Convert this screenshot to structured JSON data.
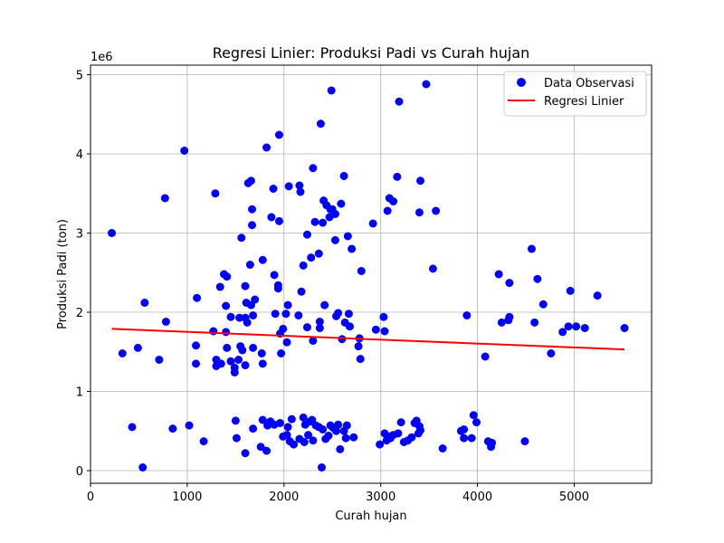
{
  "chart_data": {
    "type": "scatter",
    "title": "Regresi Linier: Produksi Padi vs Curah hujan",
    "xlabel": "Curah hujan",
    "ylabel": "Produksi Padi (ton)",
    "y_offset_label": "1e6",
    "xlim": [
      0,
      5800
    ],
    "ylim": [
      -0.16,
      5.12
    ],
    "y_unit_multiplier": 1000000,
    "x_ticks": [
      0,
      1000,
      2000,
      3000,
      4000,
      5000
    ],
    "y_ticks": [
      0,
      1,
      2,
      3,
      4,
      5
    ],
    "grid": true,
    "legend_position": "top-right",
    "colors": {
      "points": "#0000ff",
      "regression": "#ff0000"
    },
    "series": [
      {
        "name": "Data Observasi",
        "type": "scatter",
        "points": [
          [
            220,
            3.0
          ],
          [
            560,
            2.12
          ],
          [
            970,
            4.04
          ],
          [
            770,
            3.44
          ],
          [
            780,
            1.88
          ],
          [
            710,
            1.4
          ],
          [
            330,
            1.48
          ],
          [
            490,
            1.55
          ],
          [
            430,
            0.55
          ],
          [
            540,
            0.04
          ],
          [
            1290,
            3.5
          ],
          [
            1100,
            2.18
          ],
          [
            1090,
            1.58
          ],
          [
            1090,
            1.35
          ],
          [
            1020,
            0.57
          ],
          [
            850,
            0.53
          ],
          [
            1170,
            0.37
          ],
          [
            1270,
            1.76
          ],
          [
            1300,
            1.4
          ],
          [
            1300,
            1.32
          ],
          [
            1350,
            1.35
          ],
          [
            1340,
            2.32
          ],
          [
            1380,
            2.48
          ],
          [
            1410,
            2.45
          ],
          [
            1400,
            2.08
          ],
          [
            1400,
            1.75
          ],
          [
            1410,
            1.55
          ],
          [
            1450,
            1.94
          ],
          [
            1450,
            1.38
          ],
          [
            1490,
            1.24
          ],
          [
            1490,
            1.3
          ],
          [
            1530,
            1.4
          ],
          [
            1540,
            1.93
          ],
          [
            1560,
            2.94
          ],
          [
            1550,
            1.57
          ],
          [
            1570,
            1.52
          ],
          [
            1600,
            2.33
          ],
          [
            1600,
            1.93
          ],
          [
            1600,
            1.33
          ],
          [
            1610,
            2.12
          ],
          [
            1620,
            1.87
          ],
          [
            1630,
            3.63
          ],
          [
            1660,
            3.66
          ],
          [
            1650,
            2.6
          ],
          [
            1670,
            3.3
          ],
          [
            1670,
            3.1
          ],
          [
            1660,
            2.09
          ],
          [
            1680,
            1.96
          ],
          [
            1680,
            1.55
          ],
          [
            1700,
            2.16
          ],
          [
            1770,
            1.48
          ],
          [
            1780,
            2.66
          ],
          [
            1780,
            1.35
          ],
          [
            1820,
            4.08
          ],
          [
            1870,
            3.2
          ],
          [
            1890,
            3.56
          ],
          [
            1900,
            2.47
          ],
          [
            1910,
            1.98
          ],
          [
            1940,
            2.34
          ],
          [
            1940,
            2.3
          ],
          [
            1950,
            4.24
          ],
          [
            1950,
            3.15
          ],
          [
            1960,
            1.73
          ],
          [
            1970,
            1.48
          ],
          [
            1990,
            1.79
          ],
          [
            2020,
            1.98
          ],
          [
            2030,
            1.62
          ],
          [
            2040,
            2.09
          ],
          [
            2050,
            3.59
          ],
          [
            2160,
            3.6
          ],
          [
            2170,
            3.52
          ],
          [
            2150,
            1.96
          ],
          [
            2180,
            2.26
          ],
          [
            2200,
            2.59
          ],
          [
            2240,
            2.98
          ],
          [
            2240,
            1.81
          ],
          [
            2280,
            2.69
          ],
          [
            2300,
            3.82
          ],
          [
            2300,
            1.64
          ],
          [
            2320,
            3.14
          ],
          [
            2360,
            2.74
          ],
          [
            2370,
            1.88
          ],
          [
            2370,
            1.8
          ],
          [
            2380,
            4.38
          ],
          [
            2400,
            3.13
          ],
          [
            2410,
            3.41
          ],
          [
            2420,
            2.09
          ],
          [
            2440,
            3.35
          ],
          [
            2470,
            3.2
          ],
          [
            2480,
            3.3
          ],
          [
            2490,
            4.8
          ],
          [
            2500,
            3.3
          ],
          [
            2530,
            3.24
          ],
          [
            2530,
            2.91
          ],
          [
            2540,
            1.95
          ],
          [
            2560,
            1.99
          ],
          [
            2590,
            3.37
          ],
          [
            2600,
            1.66
          ],
          [
            2620,
            3.72
          ],
          [
            2630,
            1.87
          ],
          [
            2660,
            2.96
          ],
          [
            2670,
            1.98
          ],
          [
            2680,
            1.82
          ],
          [
            2700,
            2.8
          ],
          [
            2770,
            1.57
          ],
          [
            2780,
            1.67
          ],
          [
            2800,
            2.52
          ],
          [
            2790,
            1.41
          ],
          [
            2920,
            3.12
          ],
          [
            2950,
            1.78
          ],
          [
            3030,
            1.94
          ],
          [
            3040,
            1.76
          ],
          [
            3070,
            3.28
          ],
          [
            3090,
            3.44
          ],
          [
            3130,
            3.4
          ],
          [
            3170,
            3.71
          ],
          [
            3190,
            4.66
          ],
          [
            3400,
            3.26
          ],
          [
            3410,
            3.66
          ],
          [
            3470,
            4.88
          ],
          [
            3570,
            3.28
          ],
          [
            3540,
            2.55
          ],
          [
            3890,
            1.96
          ],
          [
            4080,
            1.44
          ],
          [
            4220,
            2.48
          ],
          [
            4250,
            1.87
          ],
          [
            4320,
            1.9
          ],
          [
            4330,
            1.94
          ],
          [
            4330,
            2.37
          ],
          [
            4560,
            2.8
          ],
          [
            4590,
            1.87
          ],
          [
            4620,
            2.42
          ],
          [
            4680,
            2.1
          ],
          [
            4760,
            1.48
          ],
          [
            4880,
            1.75
          ],
          [
            4960,
            2.27
          ],
          [
            4940,
            1.82
          ],
          [
            5020,
            1.82
          ],
          [
            5110,
            1.8
          ],
          [
            5240,
            2.21
          ],
          [
            5520,
            1.8
          ],
          [
            1500,
            0.63
          ],
          [
            1510,
            0.41
          ],
          [
            1600,
            0.22
          ],
          [
            1680,
            0.53
          ],
          [
            1760,
            0.3
          ],
          [
            1780,
            0.64
          ],
          [
            1820,
            0.25
          ],
          [
            1830,
            0.57
          ],
          [
            1860,
            0.62
          ],
          [
            1900,
            0.58
          ],
          [
            1960,
            0.6
          ],
          [
            1990,
            0.43
          ],
          [
            2030,
            0.45
          ],
          [
            2040,
            0.55
          ],
          [
            2060,
            0.37
          ],
          [
            2080,
            0.65
          ],
          [
            2100,
            0.33
          ],
          [
            2160,
            0.4
          ],
          [
            2200,
            0.67
          ],
          [
            2210,
            0.36
          ],
          [
            2220,
            0.58
          ],
          [
            2250,
            0.45
          ],
          [
            2270,
            0.62
          ],
          [
            2290,
            0.64
          ],
          [
            2300,
            0.38
          ],
          [
            2330,
            0.57
          ],
          [
            2360,
            0.55
          ],
          [
            2390,
            0.04
          ],
          [
            2400,
            0.52
          ],
          [
            2430,
            0.4
          ],
          [
            2460,
            0.44
          ],
          [
            2480,
            0.57
          ],
          [
            2510,
            0.54
          ],
          [
            2540,
            0.5
          ],
          [
            2560,
            0.58
          ],
          [
            2580,
            0.27
          ],
          [
            2620,
            0.5
          ],
          [
            2640,
            0.41
          ],
          [
            2650,
            0.57
          ],
          [
            2720,
            0.42
          ],
          [
            2990,
            0.33
          ],
          [
            3040,
            0.47
          ],
          [
            3060,
            0.38
          ],
          [
            3090,
            0.43
          ],
          [
            3100,
            0.41
          ],
          [
            3130,
            0.45
          ],
          [
            3180,
            0.47
          ],
          [
            3210,
            0.61
          ],
          [
            3240,
            0.36
          ],
          [
            3280,
            0.38
          ],
          [
            3320,
            0.42
          ],
          [
            3350,
            0.6
          ],
          [
            3370,
            0.63
          ],
          [
            3390,
            0.47
          ],
          [
            3400,
            0.56
          ],
          [
            3410,
            0.51
          ],
          [
            3640,
            0.28
          ],
          [
            3830,
            0.5
          ],
          [
            3860,
            0.52
          ],
          [
            3860,
            0.41
          ],
          [
            3940,
            0.41
          ],
          [
            3960,
            0.7
          ],
          [
            3990,
            0.61
          ],
          [
            4110,
            0.37
          ],
          [
            4150,
            0.35
          ],
          [
            4140,
            0.3
          ],
          [
            4490,
            0.37
          ]
        ]
      },
      {
        "name": "Regresi Linier",
        "type": "line",
        "points": [
          [
            220,
            1.79
          ],
          [
            5520,
            1.53
          ]
        ]
      }
    ]
  }
}
